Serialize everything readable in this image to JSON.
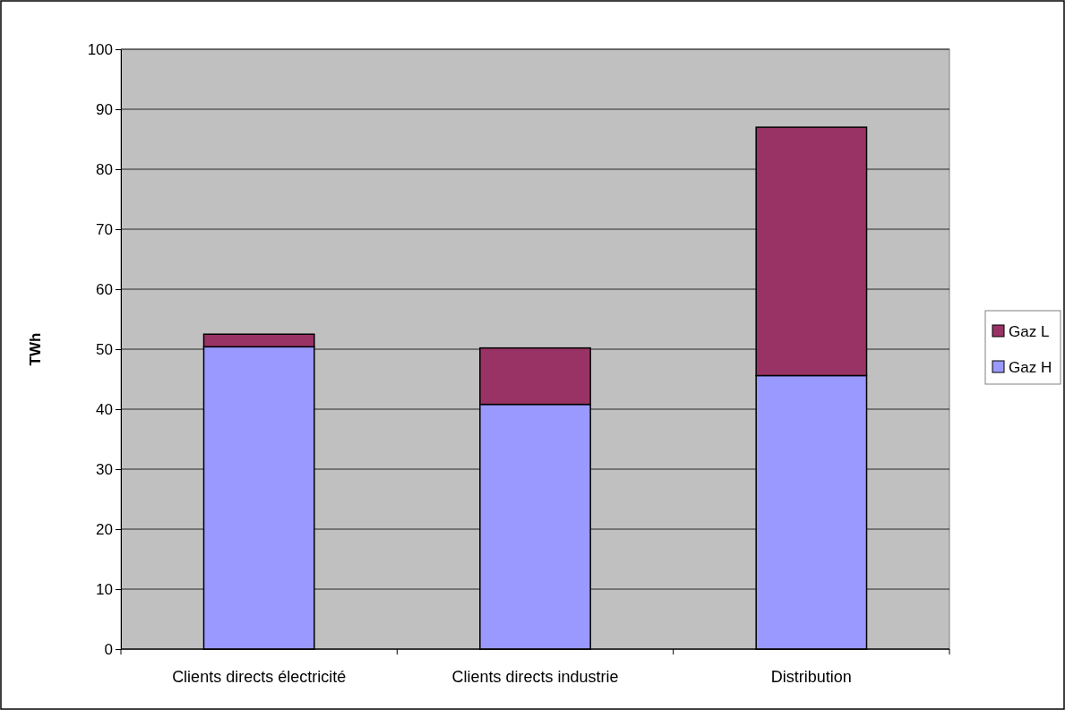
{
  "chart_data": {
    "type": "bar",
    "stacked": true,
    "ylabel": "TWh",
    "categories": [
      "Clients directs électricité",
      "Clients directs industrie",
      "Distribution"
    ],
    "series": [
      {
        "name": "Gaz H",
        "color": "#9999ff",
        "values": [
          50.4,
          40.8,
          45.6
        ]
      },
      {
        "name": "Gaz L",
        "color": "#993366",
        "values": [
          2.1,
          9.4,
          41.4
        ]
      }
    ],
    "ylim": [
      0,
      100
    ],
    "yticks": [
      0,
      10,
      20,
      30,
      40,
      50,
      60,
      70,
      80,
      90,
      100
    ],
    "grid": "y",
    "legend": "right"
  }
}
